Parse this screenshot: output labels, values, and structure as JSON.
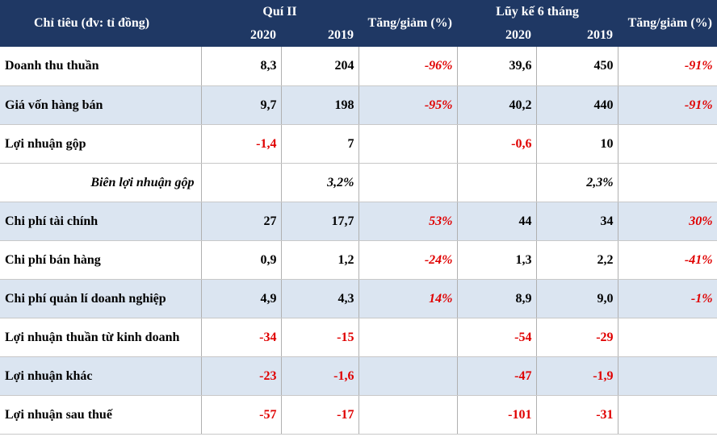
{
  "header": {
    "label": "Chỉ tiêu (đv: tỉ đồng)",
    "q2": "Quí II",
    "ytd": "Lũy kế 6 tháng",
    "change": "Tăng/giảm (%)",
    "y2020": "2020",
    "y2019": "2019"
  },
  "rows": [
    {
      "label": "Doanh thu thuần",
      "q2020": "8,3",
      "q2019": "204",
      "qchg": "-96%",
      "y2020": "39,6",
      "y2019": "450",
      "ychg": "-91%"
    },
    {
      "label": "Giá vốn hàng bán",
      "q2020": "9,7",
      "q2019": "198",
      "qchg": "-95%",
      "y2020": "40,2",
      "y2019": "440",
      "ychg": "-91%"
    },
    {
      "label": "Lợi nhuận gộp",
      "q2020": "-1,4",
      "q2019": "7",
      "qchg": "",
      "y2020": "-0,6",
      "y2019": "10",
      "ychg": ""
    },
    {
      "label": "Biên lợi nhuận gộp",
      "q2020": "",
      "q2019": "3,2%",
      "qchg": "",
      "y2020": "",
      "y2019": "2,3%",
      "ychg": ""
    },
    {
      "label": "Chi phí tài chính",
      "q2020": "27",
      "q2019": "17,7",
      "qchg": "53%",
      "y2020": "44",
      "y2019": "34",
      "ychg": "30%"
    },
    {
      "label": "Chi phí bán hàng",
      "q2020": "0,9",
      "q2019": "1,2",
      "qchg": "-24%",
      "y2020": "1,3",
      "y2019": "2,2",
      "ychg": "-41%"
    },
    {
      "label": "Chi phí quản lí doanh nghiệp",
      "q2020": "4,9",
      "q2019": "4,3",
      "qchg": "14%",
      "y2020": "8,9",
      "y2019": "9,0",
      "ychg": "-1%"
    },
    {
      "label": "Lợi nhuận thuần từ kinh doanh",
      "q2020": "-34",
      "q2019": "-15",
      "qchg": "",
      "y2020": "-54",
      "y2019": "-29",
      "ychg": ""
    },
    {
      "label": "Lợi nhuận khác",
      "q2020": "-23",
      "q2019": "-1,6",
      "qchg": "",
      "y2020": "-47",
      "y2019": "-1,9",
      "ychg": ""
    },
    {
      "label": "Lợi nhuận sau thuế",
      "q2020": "-57",
      "q2019": "-17",
      "qchg": "",
      "y2020": "-101",
      "y2019": "-31",
      "ychg": ""
    }
  ],
  "colors": {
    "header_bg": "#1f3864",
    "alt_row": "#dbe5f1",
    "negative": "#e00000"
  }
}
